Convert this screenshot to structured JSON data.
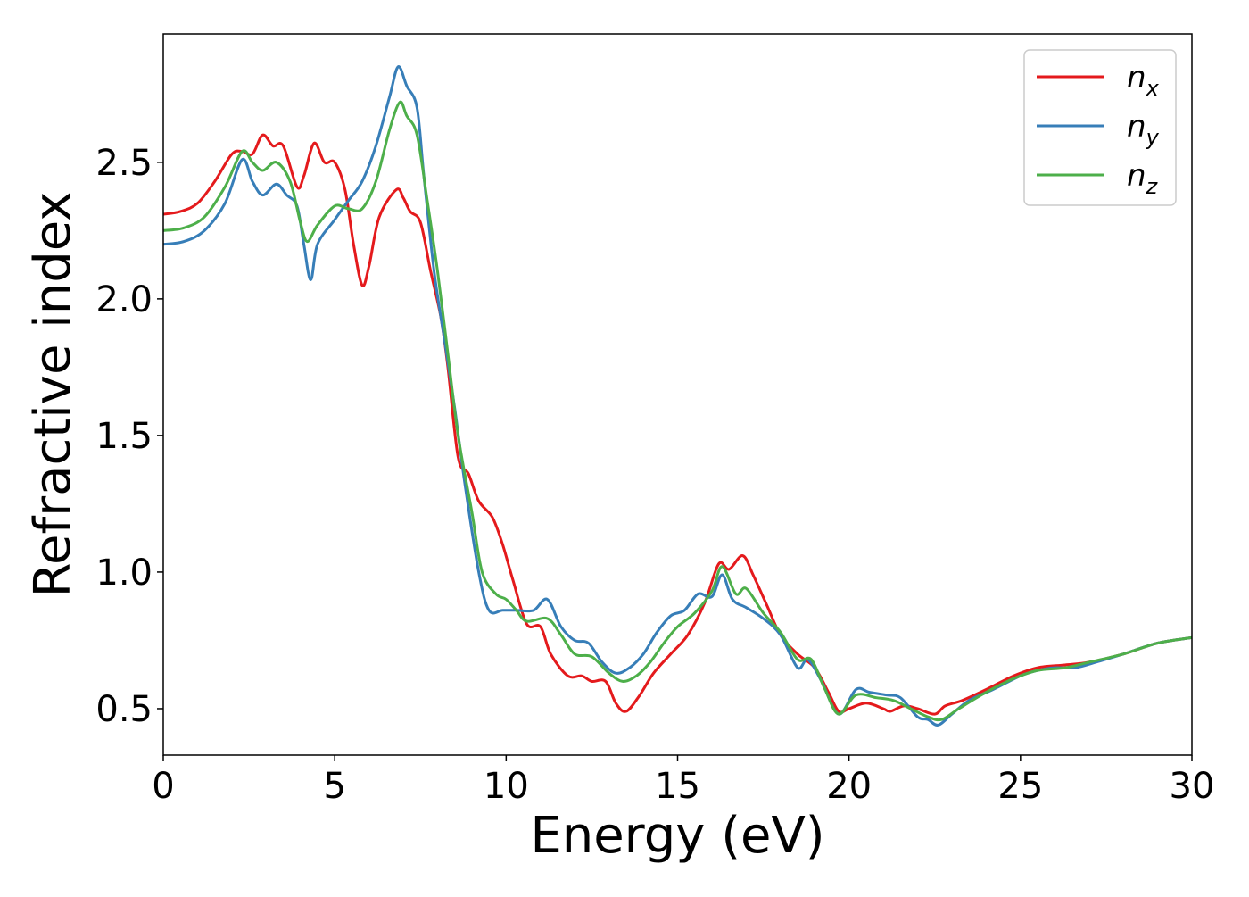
{
  "chart_data": {
    "type": "line",
    "title": "",
    "xlabel": "Energy (eV)",
    "ylabel": "Refractive index",
    "xlim": [
      0,
      30
    ],
    "ylim": [
      0.33,
      2.97
    ],
    "xticks": [
      0,
      5,
      10,
      15,
      20,
      25,
      30
    ],
    "yticks": [
      0.5,
      1.0,
      1.5,
      2.0,
      2.5
    ],
    "xtick_labels": [
      "0",
      "5",
      "10",
      "15",
      "20",
      "25",
      "30"
    ],
    "ytick_labels": [
      "0.5",
      "1.0",
      "1.5",
      "2.0",
      "2.5"
    ],
    "grid": false,
    "legend_position": "top-right",
    "series": [
      {
        "name": "n_x",
        "name_base": "n",
        "name_sub": "x",
        "color": "#e41a1c",
        "points": [
          [
            0,
            2.31
          ],
          [
            0.5,
            2.32
          ],
          [
            1,
            2.35
          ],
          [
            1.5,
            2.43
          ],
          [
            2,
            2.53
          ],
          [
            2.3,
            2.54
          ],
          [
            2.6,
            2.53
          ],
          [
            2.9,
            2.6
          ],
          [
            3.2,
            2.56
          ],
          [
            3.5,
            2.56
          ],
          [
            3.9,
            2.41
          ],
          [
            4.1,
            2.45
          ],
          [
            4.4,
            2.57
          ],
          [
            4.7,
            2.5
          ],
          [
            5,
            2.5
          ],
          [
            5.3,
            2.4
          ],
          [
            5.55,
            2.2
          ],
          [
            5.8,
            2.05
          ],
          [
            6,
            2.12
          ],
          [
            6.3,
            2.3
          ],
          [
            6.8,
            2.4
          ],
          [
            7,
            2.37
          ],
          [
            7.2,
            2.32
          ],
          [
            7.5,
            2.28
          ],
          [
            7.8,
            2.1
          ],
          [
            8.1,
            1.93
          ],
          [
            8.3,
            1.75
          ],
          [
            8.6,
            1.42
          ],
          [
            8.9,
            1.36
          ],
          [
            9.2,
            1.26
          ],
          [
            9.6,
            1.2
          ],
          [
            9.9,
            1.1
          ],
          [
            10.2,
            0.97
          ],
          [
            10.6,
            0.81
          ],
          [
            11,
            0.8
          ],
          [
            11.3,
            0.7
          ],
          [
            11.8,
            0.62
          ],
          [
            12.2,
            0.62
          ],
          [
            12.5,
            0.6
          ],
          [
            12.9,
            0.6
          ],
          [
            13.2,
            0.52
          ],
          [
            13.5,
            0.49
          ],
          [
            13.9,
            0.55
          ],
          [
            14.3,
            0.63
          ],
          [
            14.8,
            0.7
          ],
          [
            15.3,
            0.77
          ],
          [
            15.8,
            0.89
          ],
          [
            16.2,
            1.03
          ],
          [
            16.5,
            1.01
          ],
          [
            16.9,
            1.06
          ],
          [
            17.2,
            0.99
          ],
          [
            17.6,
            0.88
          ],
          [
            18,
            0.77
          ],
          [
            18.5,
            0.7
          ],
          [
            19,
            0.65
          ],
          [
            19.4,
            0.56
          ],
          [
            19.7,
            0.49
          ],
          [
            20,
            0.5
          ],
          [
            20.5,
            0.52
          ],
          [
            21,
            0.5
          ],
          [
            21.2,
            0.49
          ],
          [
            21.6,
            0.51
          ],
          [
            22,
            0.5
          ],
          [
            22.5,
            0.48
          ],
          [
            22.8,
            0.51
          ],
          [
            23.3,
            0.53
          ],
          [
            24,
            0.57
          ],
          [
            24.8,
            0.62
          ],
          [
            25.5,
            0.65
          ],
          [
            26.3,
            0.66
          ],
          [
            27,
            0.67
          ],
          [
            28,
            0.7
          ],
          [
            29,
            0.74
          ],
          [
            30,
            0.76
          ]
        ]
      },
      {
        "name": "n_y",
        "name_base": "n",
        "name_sub": "y",
        "color": "#377eb8",
        "points": [
          [
            0,
            2.2
          ],
          [
            0.6,
            2.21
          ],
          [
            1.2,
            2.25
          ],
          [
            1.8,
            2.35
          ],
          [
            2.3,
            2.51
          ],
          [
            2.6,
            2.43
          ],
          [
            2.9,
            2.38
          ],
          [
            3.3,
            2.42
          ],
          [
            3.6,
            2.38
          ],
          [
            3.9,
            2.34
          ],
          [
            4.1,
            2.2
          ],
          [
            4.3,
            2.07
          ],
          [
            4.5,
            2.2
          ],
          [
            5,
            2.29
          ],
          [
            5.4,
            2.36
          ],
          [
            5.8,
            2.43
          ],
          [
            6.2,
            2.56
          ],
          [
            6.6,
            2.74
          ],
          [
            6.85,
            2.85
          ],
          [
            7.1,
            2.78
          ],
          [
            7.4,
            2.7
          ],
          [
            7.6,
            2.45
          ],
          [
            7.9,
            2.1
          ],
          [
            8.2,
            1.85
          ],
          [
            8.5,
            1.6
          ],
          [
            8.8,
            1.32
          ],
          [
            9.2,
            1.0
          ],
          [
            9.5,
            0.86
          ],
          [
            9.9,
            0.86
          ],
          [
            10.3,
            0.86
          ],
          [
            10.8,
            0.86
          ],
          [
            11.2,
            0.9
          ],
          [
            11.6,
            0.8
          ],
          [
            12,
            0.75
          ],
          [
            12.4,
            0.74
          ],
          [
            12.8,
            0.67
          ],
          [
            13.2,
            0.63
          ],
          [
            13.6,
            0.65
          ],
          [
            14,
            0.7
          ],
          [
            14.4,
            0.78
          ],
          [
            14.8,
            0.84
          ],
          [
            15.2,
            0.86
          ],
          [
            15.6,
            0.92
          ],
          [
            16,
            0.91
          ],
          [
            16.3,
            0.99
          ],
          [
            16.6,
            0.9
          ],
          [
            17,
            0.87
          ],
          [
            17.5,
            0.83
          ],
          [
            18,
            0.77
          ],
          [
            18.5,
            0.65
          ],
          [
            18.8,
            0.68
          ],
          [
            19.2,
            0.6
          ],
          [
            19.7,
            0.48
          ],
          [
            20.2,
            0.57
          ],
          [
            20.6,
            0.56
          ],
          [
            21.1,
            0.55
          ],
          [
            21.5,
            0.54
          ],
          [
            22,
            0.47
          ],
          [
            22.3,
            0.46
          ],
          [
            22.6,
            0.44
          ],
          [
            23,
            0.48
          ],
          [
            23.5,
            0.53
          ],
          [
            24.2,
            0.57
          ],
          [
            25,
            0.62
          ],
          [
            25.5,
            0.64
          ],
          [
            26,
            0.65
          ],
          [
            26.6,
            0.65
          ],
          [
            27.2,
            0.67
          ],
          [
            28,
            0.7
          ],
          [
            29,
            0.74
          ],
          [
            30,
            0.76
          ]
        ]
      },
      {
        "name": "n_z",
        "name_base": "n",
        "name_sub": "z",
        "color": "#4daf4a",
        "points": [
          [
            0,
            2.25
          ],
          [
            0.6,
            2.26
          ],
          [
            1.2,
            2.3
          ],
          [
            1.8,
            2.41
          ],
          [
            2.3,
            2.54
          ],
          [
            2.6,
            2.5
          ],
          [
            2.9,
            2.47
          ],
          [
            3.3,
            2.5
          ],
          [
            3.7,
            2.43
          ],
          [
            4,
            2.28
          ],
          [
            4.2,
            2.21
          ],
          [
            4.5,
            2.27
          ],
          [
            5,
            2.34
          ],
          [
            5.4,
            2.33
          ],
          [
            5.8,
            2.33
          ],
          [
            6.2,
            2.43
          ],
          [
            6.6,
            2.62
          ],
          [
            6.9,
            2.72
          ],
          [
            7.1,
            2.67
          ],
          [
            7.4,
            2.6
          ],
          [
            7.7,
            2.36
          ],
          [
            8,
            2.1
          ],
          [
            8.3,
            1.8
          ],
          [
            8.6,
            1.5
          ],
          [
            9,
            1.22
          ],
          [
            9.3,
            1.0
          ],
          [
            9.7,
            0.92
          ],
          [
            10,
            0.9
          ],
          [
            10.3,
            0.86
          ],
          [
            10.6,
            0.82
          ],
          [
            11.2,
            0.83
          ],
          [
            11.6,
            0.77
          ],
          [
            12,
            0.7
          ],
          [
            12.5,
            0.69
          ],
          [
            13,
            0.63
          ],
          [
            13.4,
            0.6
          ],
          [
            13.8,
            0.62
          ],
          [
            14.2,
            0.67
          ],
          [
            14.6,
            0.74
          ],
          [
            15,
            0.8
          ],
          [
            15.5,
            0.85
          ],
          [
            16,
            0.93
          ],
          [
            16.3,
            1.02
          ],
          [
            16.7,
            0.92
          ],
          [
            17,
            0.94
          ],
          [
            17.5,
            0.85
          ],
          [
            18,
            0.78
          ],
          [
            18.5,
            0.68
          ],
          [
            18.9,
            0.68
          ],
          [
            19.3,
            0.57
          ],
          [
            19.7,
            0.48
          ],
          [
            20.2,
            0.55
          ],
          [
            20.8,
            0.54
          ],
          [
            21.3,
            0.53
          ],
          [
            21.8,
            0.5
          ],
          [
            22.3,
            0.47
          ],
          [
            22.7,
            0.46
          ],
          [
            23.2,
            0.5
          ],
          [
            24,
            0.56
          ],
          [
            24.8,
            0.61
          ],
          [
            25.5,
            0.64
          ],
          [
            26.3,
            0.65
          ],
          [
            27,
            0.67
          ],
          [
            28,
            0.7
          ],
          [
            29,
            0.74
          ],
          [
            30,
            0.76
          ]
        ]
      }
    ]
  }
}
